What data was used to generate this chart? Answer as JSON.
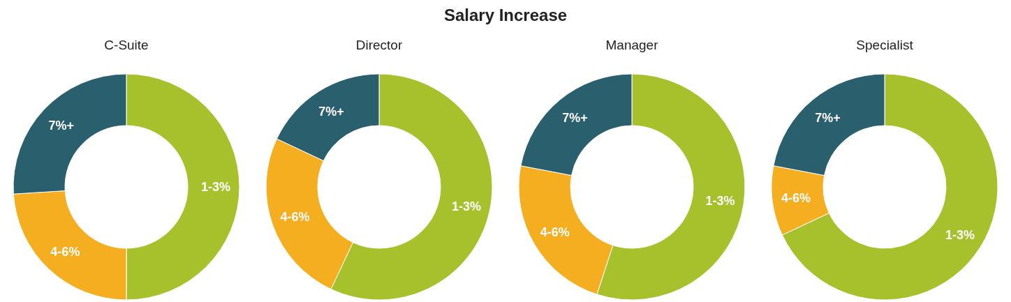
{
  "chart_data": [
    {
      "type": "other",
      "title": "Salary Increase"
    },
    {
      "type": "donut",
      "title": "C-Suite",
      "categories": [
        "1-3%",
        "4-6%",
        "7%+"
      ],
      "values": [
        50,
        24,
        26
      ],
      "colors": [
        "#a6c12c",
        "#f5ae1f",
        "#2a5f6e"
      ],
      "legend": false
    },
    {
      "type": "donut",
      "title": "Director",
      "categories": [
        "1-3%",
        "4-6%",
        "7%+"
      ],
      "values": [
        57,
        25,
        18
      ],
      "colors": [
        "#a6c12c",
        "#f5ae1f",
        "#2a5f6e"
      ],
      "legend": false
    },
    {
      "type": "donut",
      "title": "Manager",
      "categories": [
        "1-3%",
        "4-6%",
        "7%+"
      ],
      "values": [
        55,
        23,
        22
      ],
      "colors": [
        "#a6c12c",
        "#f5ae1f",
        "#2a5f6e"
      ],
      "legend": false
    },
    {
      "type": "donut",
      "title": "Specialist",
      "categories": [
        "1-3%",
        "4-6%",
        "7%+"
      ],
      "values": [
        68,
        10,
        22
      ],
      "colors": [
        "#a6c12c",
        "#f5ae1f",
        "#2a5f6e"
      ],
      "legend": false
    }
  ]
}
